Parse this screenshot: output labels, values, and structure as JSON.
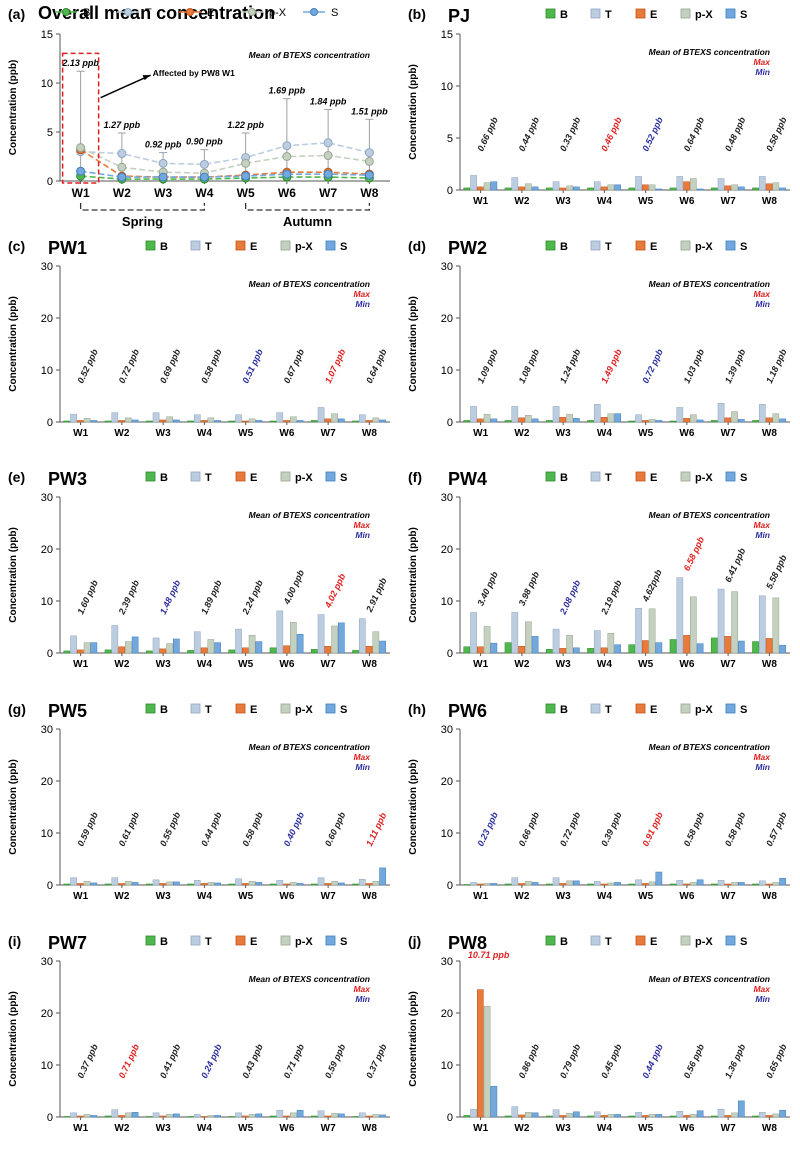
{
  "colors": {
    "B": "#4fb84c",
    "T": "#bccde0",
    "E": "#e87b3c",
    "pX": "#c5d1c0",
    "S": "#73a8dc",
    "max": "#e02020",
    "min": "#2b2fa0"
  },
  "common": {
    "ylabel": "Concentration (ppb)",
    "categories": [
      "W1",
      "W2",
      "W3",
      "W4",
      "W5",
      "W6",
      "W7",
      "W8"
    ],
    "legend": [
      "B",
      "T",
      "E",
      "p-X",
      "S"
    ],
    "mean_label": "Mean of BTEXS concentration",
    "max_label": "Max",
    "min_label": "Min"
  },
  "chart_data": [
    {
      "id": "a",
      "panel_label": "(a)",
      "title": "Overall mean concentration",
      "type": "line",
      "ylim": [
        0,
        15
      ],
      "yticks": [
        0,
        5,
        10,
        15
      ],
      "series": [
        {
          "name": "B",
          "values": [
            0.5,
            0.2,
            0.2,
            0.2,
            0.3,
            0.4,
            0.4,
            0.3
          ]
        },
        {
          "name": "T",
          "values": [
            3.0,
            2.8,
            1.8,
            1.7,
            2.4,
            3.6,
            3.9,
            2.9
          ]
        },
        {
          "name": "E",
          "values": [
            3.2,
            0.5,
            0.4,
            0.4,
            0.6,
            0.9,
            0.9,
            0.7
          ]
        },
        {
          "name": "p-X",
          "values": [
            3.4,
            1.4,
            0.9,
            0.8,
            1.8,
            2.5,
            2.6,
            2.0
          ]
        },
        {
          "name": "S",
          "values": [
            1.0,
            0.4,
            0.4,
            0.4,
            0.5,
            0.7,
            0.7,
            0.6
          ]
        }
      ],
      "error_upper": [
        11.2,
        4.9,
        2.9,
        3.2,
        4.9,
        8.4,
        7.3,
        6.3
      ],
      "mean_labels": [
        "2.13 ppb",
        "1.27 ppb",
        "0.92 ppb",
        "0.90 ppb",
        "1.22 ppb",
        "1.69 ppb",
        "1.84 ppb",
        "1.51 ppb"
      ],
      "annotation": "Affected by PW8 W1",
      "seasons": [
        {
          "label": "Spring",
          "from": "W1",
          "to": "W4"
        },
        {
          "label": "Autumn",
          "from": "W5",
          "to": "W8"
        }
      ]
    },
    {
      "id": "b",
      "panel_label": "(b)",
      "title": "PJ",
      "type": "bar",
      "ylim": [
        0,
        15
      ],
      "yticks": [
        0,
        5,
        10,
        15
      ],
      "series": [
        {
          "name": "B",
          "values": [
            0.2,
            0.2,
            0.2,
            0.2,
            0.2,
            0.2,
            0.2,
            0.2
          ]
        },
        {
          "name": "T",
          "values": [
            1.4,
            1.2,
            0.8,
            0.8,
            1.3,
            1.3,
            1.1,
            1.3
          ]
        },
        {
          "name": "E",
          "values": [
            0.3,
            0.3,
            0.2,
            0.3,
            0.5,
            0.8,
            0.4,
            0.6
          ]
        },
        {
          "name": "p-X",
          "values": [
            0.7,
            0.6,
            0.4,
            0.5,
            0.5,
            1.1,
            0.5,
            0.7
          ]
        },
        {
          "name": "S",
          "values": [
            0.8,
            0.3,
            0.3,
            0.5,
            0.1,
            0.1,
            0.3,
            0.2
          ]
        }
      ],
      "mean_labels": [
        "0.66 ppb",
        "0.44 ppb",
        "0.33 ppb",
        "0.46 ppb",
        "0.52 ppb",
        "0.64 ppb",
        "0.48 ppb",
        "0.58 ppb"
      ],
      "label_kind": [
        "",
        "",
        "",
        "max",
        "min",
        "",
        "",
        ""
      ]
    },
    {
      "id": "c",
      "panel_label": "(c)",
      "title": "PW1",
      "type": "bar",
      "ylim": [
        0,
        30
      ],
      "yticks": [
        0,
        10,
        20,
        30
      ],
      "series": [
        {
          "name": "B",
          "values": [
            0.2,
            0.2,
            0.2,
            0.2,
            0.2,
            0.2,
            0.3,
            0.2
          ]
        },
        {
          "name": "T",
          "values": [
            1.5,
            1.8,
            1.8,
            1.4,
            1.4,
            1.8,
            2.8,
            1.4
          ]
        },
        {
          "name": "E",
          "values": [
            0.3,
            0.3,
            0.4,
            0.3,
            0.2,
            0.3,
            0.6,
            0.3
          ]
        },
        {
          "name": "p-X",
          "values": [
            0.7,
            0.8,
            1.0,
            0.8,
            0.6,
            1.0,
            1.6,
            0.8
          ]
        },
        {
          "name": "S",
          "values": [
            0.3,
            0.4,
            0.4,
            0.3,
            0.3,
            0.3,
            0.6,
            0.4
          ]
        }
      ],
      "mean_labels": [
        "0.52 ppb",
        "0.72 ppb",
        "0.69 ppb",
        "0.58 ppb",
        "0.51 ppb",
        "0.67 ppb",
        "1.07 ppb",
        "0.64 ppb"
      ],
      "label_kind": [
        "",
        "",
        "",
        "",
        "min",
        "",
        "max",
        ""
      ]
    },
    {
      "id": "d",
      "panel_label": "(d)",
      "title": "PW2",
      "type": "bar",
      "ylim": [
        0,
        30
      ],
      "yticks": [
        0,
        10,
        20,
        30
      ],
      "series": [
        {
          "name": "B",
          "values": [
            0.3,
            0.3,
            0.3,
            0.3,
            0.2,
            0.2,
            0.3,
            0.3
          ]
        },
        {
          "name": "T",
          "values": [
            3.0,
            3.0,
            3.0,
            3.4,
            1.4,
            2.8,
            3.6,
            3.4
          ]
        },
        {
          "name": "E",
          "values": [
            0.6,
            0.8,
            0.9,
            0.9,
            0.3,
            0.7,
            0.8,
            0.8
          ]
        },
        {
          "name": "p-X",
          "values": [
            1.5,
            1.3,
            1.5,
            1.6,
            0.5,
            1.4,
            2.0,
            1.6
          ]
        },
        {
          "name": "S",
          "values": [
            0.6,
            0.6,
            0.7,
            1.6,
            0.3,
            0.4,
            0.5,
            0.6
          ]
        }
      ],
      "mean_labels": [
        "1.09 ppb",
        "1.08 ppb",
        "1.24 ppb",
        "1.49 ppb",
        "0.72 ppb",
        "1.03 ppb",
        "1.39 ppb",
        "1.18 ppb"
      ],
      "label_kind": [
        "",
        "",
        "",
        "max",
        "min",
        "",
        "",
        ""
      ]
    },
    {
      "id": "e",
      "panel_label": "(e)",
      "title": "PW3",
      "type": "bar",
      "ylim": [
        0,
        30
      ],
      "yticks": [
        0,
        10,
        20,
        30
      ],
      "series": [
        {
          "name": "B",
          "values": [
            0.4,
            0.6,
            0.4,
            0.5,
            0.6,
            1.0,
            0.7,
            0.5
          ]
        },
        {
          "name": "T",
          "values": [
            3.3,
            5.3,
            2.9,
            4.1,
            4.6,
            8.1,
            7.4,
            6.6
          ]
        },
        {
          "name": "E",
          "values": [
            0.6,
            1.2,
            0.8,
            1.0,
            1.0,
            1.4,
            1.3,
            1.3
          ]
        },
        {
          "name": "p-X",
          "values": [
            2.0,
            2.2,
            1.8,
            2.6,
            3.4,
            5.9,
            5.2,
            4.1
          ]
        },
        {
          "name": "S",
          "values": [
            2.0,
            3.1,
            2.7,
            2.0,
            2.2,
            3.6,
            5.8,
            2.3
          ]
        }
      ],
      "mean_labels": [
        "1.60 ppb",
        "2.39 ppb",
        "1.48 ppb",
        "1.89 ppb",
        "2.24 ppb",
        "4.00 ppb",
        "4.02 ppb",
        "2.91 ppb"
      ],
      "label_kind": [
        "",
        "",
        "min",
        "",
        "",
        "",
        "max",
        ""
      ]
    },
    {
      "id": "f",
      "panel_label": "(f)",
      "title": "PW4",
      "type": "bar",
      "ylim": [
        0,
        30
      ],
      "yticks": [
        0,
        10,
        20,
        30
      ],
      "series": [
        {
          "name": "B",
          "values": [
            1.2,
            2.0,
            0.7,
            0.9,
            1.6,
            2.6,
            2.9,
            2.2
          ]
        },
        {
          "name": "T",
          "values": [
            7.8,
            7.8,
            4.6,
            4.3,
            8.6,
            14.5,
            12.3,
            11.0
          ]
        },
        {
          "name": "E",
          "values": [
            1.2,
            1.3,
            0.9,
            1.0,
            2.4,
            3.4,
            3.2,
            2.8
          ]
        },
        {
          "name": "p-X",
          "values": [
            5.1,
            6.0,
            3.4,
            3.8,
            8.5,
            10.8,
            11.8,
            10.6
          ]
        },
        {
          "name": "S",
          "values": [
            1.9,
            3.2,
            1.0,
            1.6,
            2.0,
            1.8,
            2.3,
            1.5
          ]
        }
      ],
      "mean_labels": [
        "3.40 ppb",
        "3.98 ppb",
        "2.08 ppb",
        "2.19 ppb",
        "4.62ppb",
        "6.58 ppb",
        "6.41 ppb",
        "5.58 ppb"
      ],
      "label_kind": [
        "",
        "",
        "min",
        "",
        "",
        "max",
        "",
        ""
      ]
    },
    {
      "id": "g",
      "panel_label": "(g)",
      "title": "PW5",
      "type": "bar",
      "ylim": [
        0,
        30
      ],
      "yticks": [
        0,
        10,
        20,
        30
      ],
      "series": [
        {
          "name": "B",
          "values": [
            0.2,
            0.2,
            0.2,
            0.2,
            0.2,
            0.2,
            0.2,
            0.2
          ]
        },
        {
          "name": "T",
          "values": [
            1.4,
            1.4,
            1.0,
            0.9,
            1.2,
            0.9,
            1.4,
            1.1
          ]
        },
        {
          "name": "E",
          "values": [
            0.3,
            0.3,
            0.3,
            0.3,
            0.3,
            0.2,
            0.3,
            0.3
          ]
        },
        {
          "name": "p-X",
          "values": [
            0.7,
            0.7,
            0.6,
            0.5,
            0.7,
            0.5,
            0.7,
            0.7
          ]
        },
        {
          "name": "S",
          "values": [
            0.4,
            0.5,
            0.6,
            0.4,
            0.5,
            0.3,
            0.4,
            3.3
          ]
        }
      ],
      "mean_labels": [
        "0.59 ppb",
        "0.61 ppb",
        "0.55 ppb",
        "0.44 ppb",
        "0.58 ppb",
        "0.40 ppb",
        "0.60 ppb",
        "1.11 ppb"
      ],
      "label_kind": [
        "",
        "",
        "",
        "",
        "",
        "min",
        "",
        "max"
      ]
    },
    {
      "id": "h",
      "panel_label": "(h)",
      "title": "PW6",
      "type": "bar",
      "ylim": [
        0,
        30
      ],
      "yticks": [
        0,
        10,
        20,
        30
      ],
      "series": [
        {
          "name": "B",
          "values": [
            0.1,
            0.2,
            0.2,
            0.2,
            0.2,
            0.2,
            0.2,
            0.2
          ]
        },
        {
          "name": "T",
          "values": [
            0.5,
            1.4,
            1.4,
            0.7,
            1.0,
            0.9,
            0.9,
            0.8
          ]
        },
        {
          "name": "E",
          "values": [
            0.2,
            0.3,
            0.3,
            0.2,
            0.3,
            0.2,
            0.2,
            0.2
          ]
        },
        {
          "name": "p-X",
          "values": [
            0.3,
            0.7,
            0.8,
            0.4,
            0.6,
            0.5,
            0.5,
            0.5
          ]
        },
        {
          "name": "S",
          "values": [
            0.3,
            0.5,
            0.8,
            0.5,
            2.5,
            1.0,
            0.5,
            1.3
          ]
        }
      ],
      "mean_labels": [
        "0.23 ppb",
        "0.66 ppb",
        "0.72 ppb",
        "0.39 ppb",
        "0.91 ppb",
        "0.58 ppb",
        "0.58 ppb",
        "0.57 ppb"
      ],
      "label_kind": [
        "min",
        "",
        "",
        "",
        "max",
        "",
        "",
        ""
      ]
    },
    {
      "id": "i",
      "panel_label": "(i)",
      "title": "PW7",
      "type": "bar",
      "ylim": [
        0,
        30
      ],
      "yticks": [
        0,
        10,
        20,
        30
      ],
      "series": [
        {
          "name": "B",
          "values": [
            0.1,
            0.2,
            0.1,
            0.1,
            0.1,
            0.2,
            0.2,
            0.1
          ]
        },
        {
          "name": "T",
          "values": [
            0.8,
            1.4,
            0.8,
            0.5,
            0.8,
            1.3,
            1.2,
            0.8
          ]
        },
        {
          "name": "E",
          "values": [
            0.2,
            0.3,
            0.2,
            0.1,
            0.2,
            0.2,
            0.2,
            0.2
          ]
        },
        {
          "name": "p-X",
          "values": [
            0.5,
            0.8,
            0.5,
            0.3,
            0.5,
            0.8,
            0.7,
            0.5
          ]
        },
        {
          "name": "S",
          "values": [
            0.3,
            0.9,
            0.6,
            0.3,
            0.6,
            1.3,
            0.6,
            0.4
          ]
        }
      ],
      "mean_labels": [
        "0.37 ppb",
        "0.71 ppb",
        "0.41 ppb",
        "0.24 ppb",
        "0.43 ppb",
        "0.71 ppb",
        "0.59 ppb",
        "0.37 ppb"
      ],
      "label_kind": [
        "",
        "max",
        "",
        "min",
        "",
        "",
        "",
        ""
      ]
    },
    {
      "id": "j",
      "panel_label": "(j)",
      "title": "PW8",
      "type": "bar",
      "ylim": [
        0,
        30
      ],
      "yticks": [
        0,
        10,
        20,
        30
      ],
      "series": [
        {
          "name": "B",
          "values": [
            0.3,
            0.2,
            0.2,
            0.2,
            0.2,
            0.2,
            0.2,
            0.2
          ]
        },
        {
          "name": "T",
          "values": [
            1.5,
            2.0,
            1.4,
            1.0,
            0.9,
            1.1,
            1.5,
            0.9
          ]
        },
        {
          "name": "E",
          "values": [
            24.5,
            0.4,
            0.3,
            0.3,
            0.3,
            0.3,
            0.3,
            0.3
          ]
        },
        {
          "name": "p-X",
          "values": [
            21.3,
            0.9,
            0.7,
            0.5,
            0.5,
            0.5,
            0.8,
            0.6
          ]
        },
        {
          "name": "S",
          "values": [
            5.9,
            0.8,
            1.0,
            0.5,
            0.5,
            1.2,
            3.1,
            1.3
          ]
        }
      ],
      "mean_labels": [
        "10.71 ppb",
        "0.86 ppb",
        "0.79 ppb",
        "0.45 ppb",
        "0.44 ppb",
        "0.56 ppb",
        "1.36 ppb",
        "0.65 ppb"
      ],
      "label_kind": [
        "max",
        "",
        "",
        "",
        "min",
        "",
        "",
        ""
      ]
    }
  ]
}
